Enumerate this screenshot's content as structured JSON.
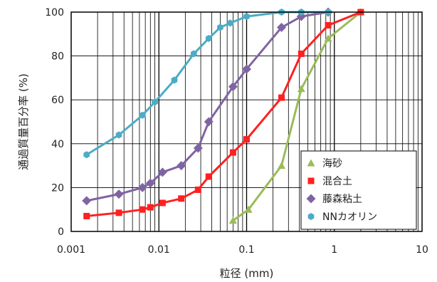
{
  "chart_data": {
    "type": "scatter",
    "xscale": "log",
    "xlim": [
      0.001,
      10
    ],
    "ylim": [
      0,
      100
    ],
    "grid": true,
    "legend_position": "bottom-right",
    "xlabel": "粒径 (mm)",
    "ylabel": "通過質量百分率 (%)",
    "x_ticks": [
      "0.001",
      "0.01",
      "0.1",
      "1",
      "10"
    ],
    "y_ticks": [
      "0",
      "20",
      "40",
      "60",
      "80",
      "100"
    ],
    "series": [
      {
        "name": "海砂",
        "color": "#9bbb59",
        "marker": "triangle",
        "points": [
          [
            0.07,
            5
          ],
          [
            0.105,
            10
          ],
          [
            0.25,
            30
          ],
          [
            0.42,
            65
          ],
          [
            0.85,
            88
          ],
          [
            2.0,
            100
          ]
        ]
      },
      {
        "name": "混合土",
        "color": "#ff2020",
        "marker": "square",
        "points": [
          [
            0.0015,
            7
          ],
          [
            0.0035,
            8.5
          ],
          [
            0.0065,
            10
          ],
          [
            0.008,
            11
          ],
          [
            0.011,
            13
          ],
          [
            0.018,
            15
          ],
          [
            0.028,
            19
          ],
          [
            0.037,
            25
          ],
          [
            0.07,
            36
          ],
          [
            0.1,
            42
          ],
          [
            0.25,
            61
          ],
          [
            0.42,
            81
          ],
          [
            0.85,
            94
          ],
          [
            2.0,
            100
          ]
        ]
      },
      {
        "name": "藤森粘土",
        "color": "#8064a2",
        "marker": "diamond",
        "points": [
          [
            0.0015,
            14
          ],
          [
            0.0035,
            17
          ],
          [
            0.0065,
            20
          ],
          [
            0.008,
            22
          ],
          [
            0.011,
            27
          ],
          [
            0.018,
            30
          ],
          [
            0.028,
            38
          ],
          [
            0.037,
            50
          ],
          [
            0.07,
            66
          ],
          [
            0.1,
            74
          ],
          [
            0.25,
            93
          ],
          [
            0.42,
            98
          ],
          [
            0.85,
            100
          ]
        ]
      },
      {
        "name": "NNカオリン",
        "color": "#4bacc6",
        "marker": "circle",
        "points": [
          [
            0.0015,
            35
          ],
          [
            0.0035,
            44
          ],
          [
            0.0065,
            53
          ],
          [
            0.009,
            59
          ],
          [
            0.015,
            69
          ],
          [
            0.025,
            81
          ],
          [
            0.037,
            88
          ],
          [
            0.05,
            93
          ],
          [
            0.065,
            95
          ],
          [
            0.1,
            98
          ],
          [
            0.25,
            100
          ],
          [
            0.42,
            100
          ],
          [
            0.85,
            100
          ]
        ]
      }
    ]
  }
}
